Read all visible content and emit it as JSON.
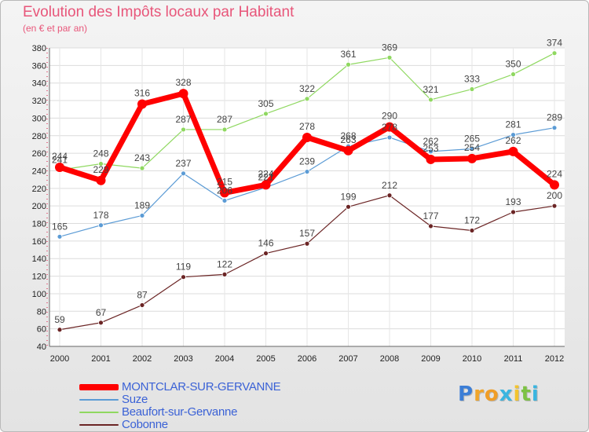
{
  "chart_data": {
    "type": "line",
    "title": "Evolution des Impôts locaux par Habitant",
    "subtitle": "(en € et par an)",
    "xlabel": "",
    "ylabel": "",
    "x": [
      "2000",
      "2001",
      "2002",
      "2003",
      "2004",
      "2005",
      "2006",
      "2007",
      "2008",
      "2009",
      "2010",
      "2011",
      "2012"
    ],
    "ylim": [
      40,
      380
    ],
    "yticks": [
      40,
      60,
      80,
      100,
      120,
      140,
      160,
      180,
      200,
      220,
      240,
      260,
      280,
      300,
      320,
      340,
      360,
      380
    ],
    "grid": true,
    "legend_position": "bottom-left",
    "series": [
      {
        "name": "MONTCLAR-SUR-GERVANNE",
        "color": "#ff0000",
        "values": [
          244,
          229,
          316,
          328,
          215,
          224,
          278,
          263,
          290,
          253,
          254,
          262,
          224
        ]
      },
      {
        "name": "Suze",
        "color": "#5b9bd5",
        "values": [
          165,
          178,
          189,
          237,
          206,
          221,
          239,
          268,
          278,
          262,
          265,
          281,
          289
        ]
      },
      {
        "name": "Beaufort-sur-Gervanne",
        "color": "#8fd860",
        "values": [
          241,
          248,
          243,
          287,
          287,
          305,
          322,
          361,
          369,
          321,
          333,
          350,
          374
        ]
      },
      {
        "name": "Cobonne",
        "color": "#6b2525",
        "values": [
          59,
          67,
          87,
          119,
          122,
          146,
          157,
          199,
          212,
          177,
          172,
          193,
          200
        ]
      }
    ]
  },
  "brand": {
    "letters": [
      "P",
      "r",
      "o",
      "x",
      "i",
      "t",
      "i"
    ]
  },
  "colors": {
    "title": "#e8567a",
    "legend_text": "#3b62d6",
    "brand_letters": [
      "#3c7ed6",
      "#f0a52a",
      "#f09d26",
      "#3ab5e0",
      "#f3c42e",
      "#7dc243",
      "#3ab5e0"
    ]
  }
}
